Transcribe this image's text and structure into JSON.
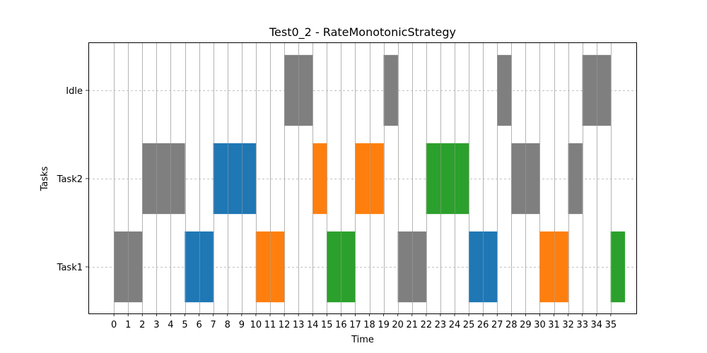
{
  "chart_data": {
    "type": "gantt",
    "title": "Test0_2 - RateMonotonicStrategy",
    "xlabel": "Time",
    "ylabel": "Tasks",
    "xlim": [
      -1.8,
      36.8
    ],
    "x_ticks": [
      0,
      1,
      2,
      3,
      4,
      5,
      6,
      7,
      8,
      9,
      10,
      11,
      12,
      13,
      14,
      15,
      16,
      17,
      18,
      19,
      20,
      21,
      22,
      23,
      24,
      25,
      26,
      27,
      28,
      29,
      30,
      31,
      32,
      33,
      34,
      35
    ],
    "categories": [
      "Task1",
      "Task2",
      "Idle"
    ],
    "grid": {
      "x": "solid",
      "y": "dashed"
    },
    "colors": {
      "gray": "#7f7f7f",
      "blue": "#1f77b4",
      "orange": "#ff7f0e",
      "green": "#2ca02c"
    },
    "segments": [
      {
        "task": "Task1",
        "start": 0,
        "end": 2,
        "color": "gray"
      },
      {
        "task": "Task1",
        "start": 5,
        "end": 7,
        "color": "blue"
      },
      {
        "task": "Task1",
        "start": 10,
        "end": 12,
        "color": "orange"
      },
      {
        "task": "Task1",
        "start": 15,
        "end": 17,
        "color": "green"
      },
      {
        "task": "Task1",
        "start": 20,
        "end": 22,
        "color": "gray"
      },
      {
        "task": "Task1",
        "start": 25,
        "end": 27,
        "color": "blue"
      },
      {
        "task": "Task1",
        "start": 30,
        "end": 32,
        "color": "orange"
      },
      {
        "task": "Task1",
        "start": 35,
        "end": 36,
        "color": "green"
      },
      {
        "task": "Task2",
        "start": 2,
        "end": 5,
        "color": "gray"
      },
      {
        "task": "Task2",
        "start": 7,
        "end": 10,
        "color": "blue"
      },
      {
        "task": "Task2",
        "start": 14,
        "end": 15,
        "color": "orange"
      },
      {
        "task": "Task2",
        "start": 17,
        "end": 19,
        "color": "orange"
      },
      {
        "task": "Task2",
        "start": 22,
        "end": 25,
        "color": "green"
      },
      {
        "task": "Task2",
        "start": 28,
        "end": 30,
        "color": "gray"
      },
      {
        "task": "Task2",
        "start": 32,
        "end": 33,
        "color": "gray"
      },
      {
        "task": "Idle",
        "start": 12,
        "end": 14,
        "color": "gray"
      },
      {
        "task": "Idle",
        "start": 19,
        "end": 20,
        "color": "gray"
      },
      {
        "task": "Idle",
        "start": 27,
        "end": 28,
        "color": "gray"
      },
      {
        "task": "Idle",
        "start": 33,
        "end": 35,
        "color": "gray"
      }
    ]
  }
}
